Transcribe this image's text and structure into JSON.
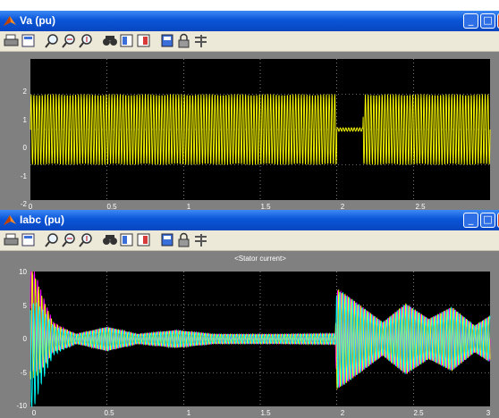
{
  "scopes": [
    {
      "title": "Va (pu)",
      "toolbar_icons": [
        "print-icon",
        "parameters-icon",
        "zoom-icon",
        "zoom-x-icon",
        "zoom-y-icon",
        "autoscale-icon",
        "save-axes-icon",
        "restore-axes-icon",
        "floating-scope-icon",
        "lock-axes-icon",
        "signal-selector-icon"
      ],
      "plot": {
        "title": "",
        "x_ticks": [
          "0",
          "0.5",
          "1",
          "1.5",
          "2",
          "2.5"
        ],
        "y_ticks": [
          "2",
          "1",
          "0",
          "-1",
          "-2"
        ]
      }
    },
    {
      "title": "Iabc (pu)",
      "toolbar_icons": [
        "print-icon",
        "parameters-icon",
        "zoom-icon",
        "zoom-x-icon",
        "zoom-y-icon",
        "autoscale-icon",
        "save-axes-icon",
        "restore-axes-icon",
        "floating-scope-icon",
        "lock-axes-icon",
        "signal-selector-icon"
      ],
      "plot": {
        "title": "<Stator current>",
        "x_ticks": [
          "0",
          "0.5",
          "1",
          "1.5",
          "2",
          "2.5",
          "3"
        ],
        "y_ticks": [
          "10",
          "5",
          "0",
          "-5",
          "-10"
        ]
      }
    }
  ],
  "chart_data": [
    {
      "type": "line",
      "title": "",
      "xlim": [
        0,
        3
      ],
      "ylim": [
        -2,
        2
      ],
      "grid": true,
      "series": [
        {
          "color": "#ffff00",
          "amplitude_segments": [
            [
              0,
              2.0,
              1.0
            ],
            [
              2.0,
              2.17,
              0.05
            ],
            [
              2.17,
              3.0,
              1.0
            ]
          ]
        }
      ]
    },
    {
      "type": "line",
      "title": "<Stator current>",
      "xlim": [
        0,
        3
      ],
      "ylim": [
        -10,
        10
      ],
      "grid": true,
      "series": [
        {
          "color": "#ff00ff",
          "peak_start": 9.0
        },
        {
          "color": "#ffff00",
          "peak_start": 6.0
        },
        {
          "color": "#00ffff",
          "peak_start": -7.0
        }
      ],
      "envelope": [
        [
          0,
          9.0
        ],
        [
          0.15,
          2.2
        ],
        [
          0.3,
          0.7
        ],
        [
          0.5,
          1.8
        ],
        [
          0.7,
          0.7
        ],
        [
          0.95,
          1.3
        ],
        [
          1.2,
          0.7
        ],
        [
          1.6,
          0.7
        ],
        [
          1.99,
          0.8
        ],
        [
          2.0,
          7.5
        ],
        [
          2.05,
          6.8
        ],
        [
          2.3,
          2.5
        ],
        [
          2.45,
          5.3
        ],
        [
          2.6,
          3.0
        ],
        [
          2.75,
          4.8
        ],
        [
          2.9,
          2.0
        ],
        [
          3.0,
          3.5
        ]
      ]
    }
  ]
}
